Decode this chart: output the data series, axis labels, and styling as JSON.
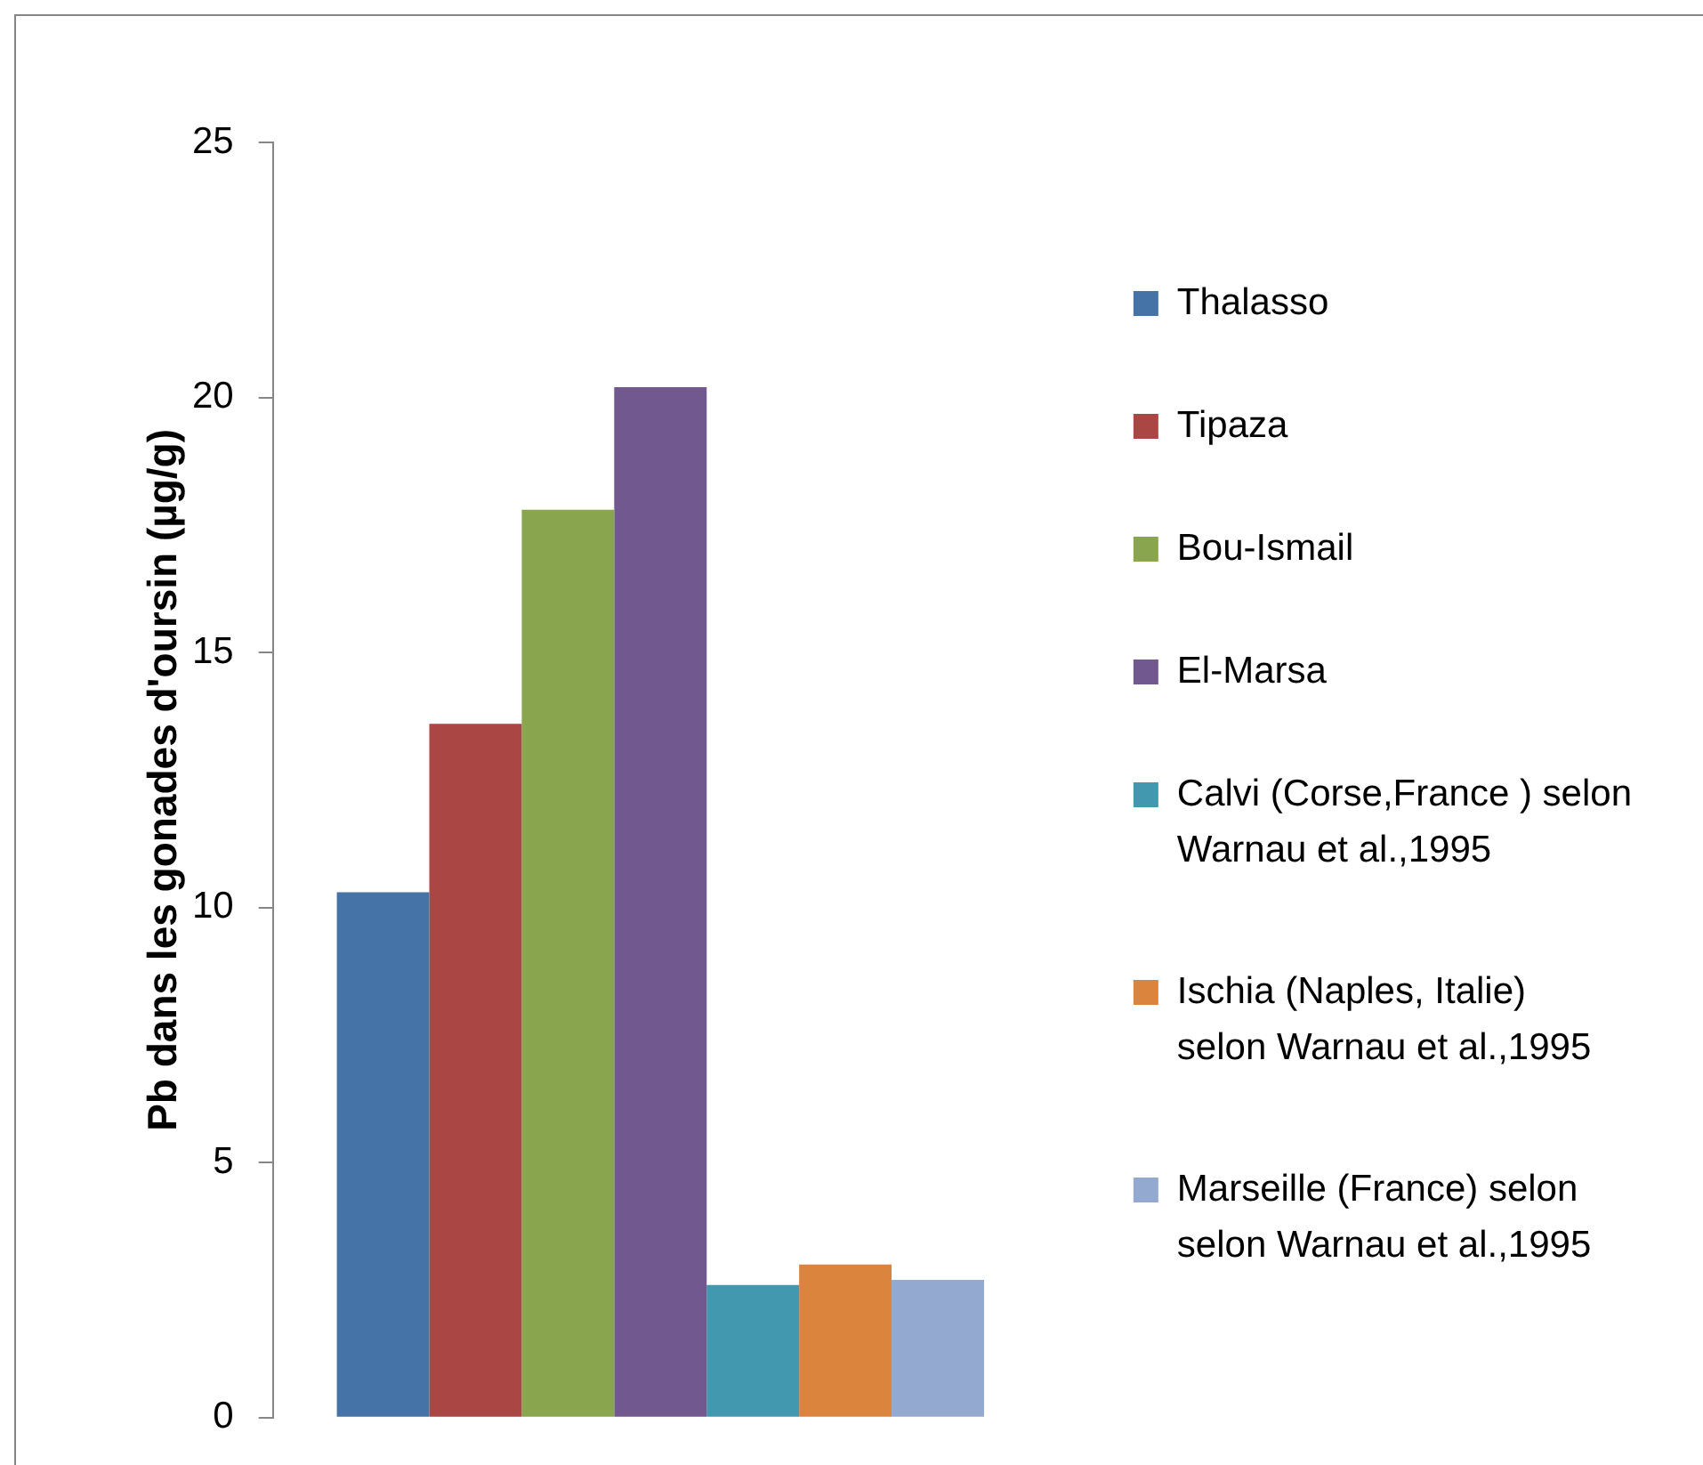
{
  "chart_data": {
    "type": "bar",
    "ylabel": "Pb dans les gonades d'oursin (µg/g)",
    "categories": [
      null
    ],
    "series": [
      {
        "name": "Thalasso",
        "color": "#4572a7",
        "values": [
          10.3
        ]
      },
      {
        "name": "Tipaza",
        "color": "#aa4643",
        "values": [
          13.6
        ]
      },
      {
        "name": "Bou-Ismail",
        "color": "#89a54e",
        "values": [
          17.8
        ]
      },
      {
        "name": "El-Marsa",
        "color": "#71588f",
        "values": [
          20.2
        ]
      },
      {
        "name": "Calvi (Corse,France ) selon Warnau et al.,1995",
        "color": "#4198af",
        "values": [
          2.6
        ]
      },
      {
        "name": "Ischia (Naples, Italie) selon Warnau et al.,1995",
        "color": "#db843d",
        "values": [
          3.0
        ]
      },
      {
        "name": "Marseille (France) selon selon Warnau et al.,1995",
        "color": "#93a9cf",
        "values": [
          2.7
        ]
      }
    ],
    "ylim": [
      0,
      25
    ],
    "yticks": [
      0,
      5,
      10,
      15,
      20,
      25
    ],
    "grid": false,
    "legend": "right",
    "tick_labels": "y"
  }
}
